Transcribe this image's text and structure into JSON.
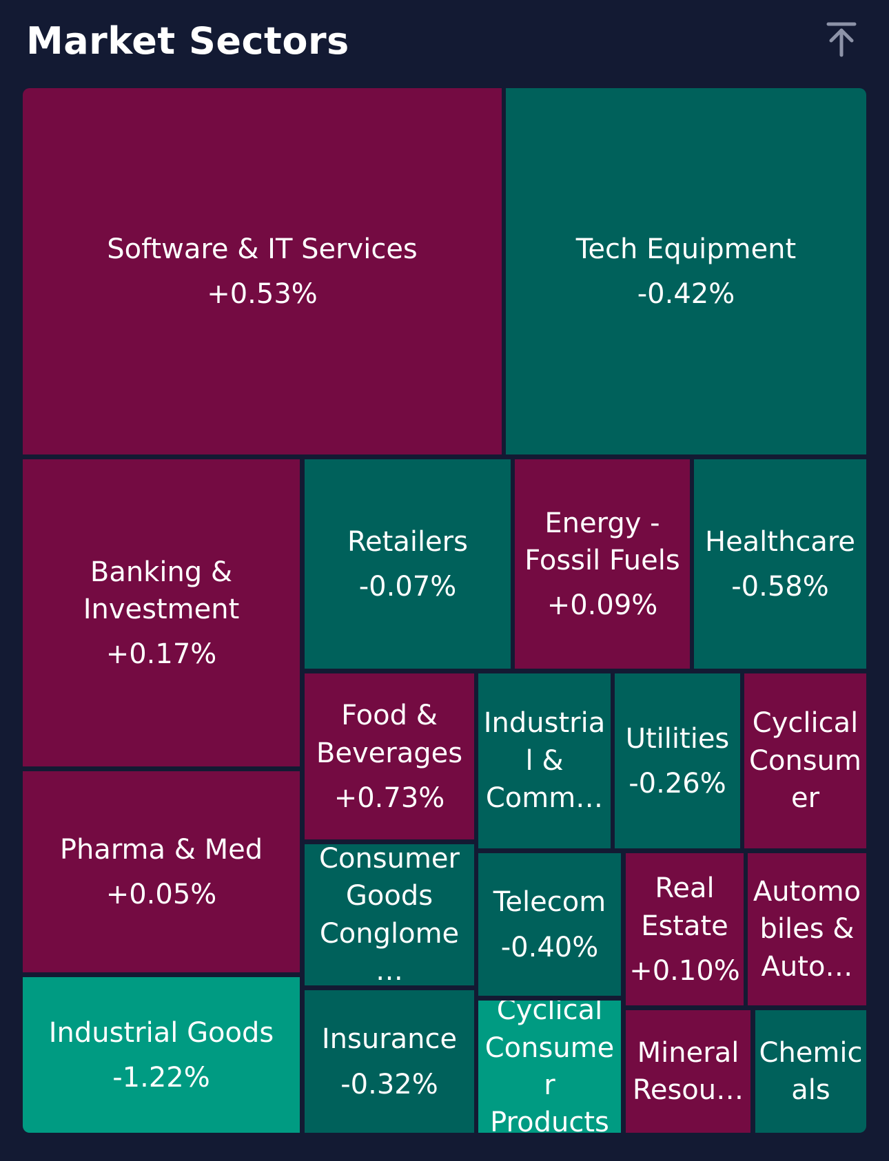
{
  "header": {
    "title": "Market Sectors",
    "collapse_icon": "collapse-up-arrow-icon"
  },
  "colors": {
    "background": "#131a33",
    "positive": "#740b42",
    "negative": "#00615b",
    "strong_negative": "#009b82",
    "text": "#ffffff",
    "icon": "#8d93a8"
  },
  "chart_data": {
    "type": "treemap",
    "title": "Market Sectors",
    "sectors": [
      {
        "name": "Software & IT Services",
        "change": "+0.53%",
        "value": 0.53
      },
      {
        "name": "Tech Equipment",
        "change": "-0.42%",
        "value": -0.42
      },
      {
        "name": "Banking & Investment",
        "change": "+0.17%",
        "value": 0.17
      },
      {
        "name": "Retailers",
        "change": "-0.07%",
        "value": -0.07
      },
      {
        "name": "Energy - Fossil Fuels",
        "change": "+0.09%",
        "value": 0.09
      },
      {
        "name": "Healthcare",
        "change": "-0.58%",
        "value": -0.58
      },
      {
        "name": "Food & Beverages",
        "change": "+0.73%",
        "value": 0.73
      },
      {
        "name": "Industrial & Comm…",
        "change": "",
        "value": null
      },
      {
        "name": "Utilities",
        "change": "-0.26%",
        "value": -0.26
      },
      {
        "name": "Cyclical Consumer",
        "change": "",
        "value": null
      },
      {
        "name": "Pharma & Med",
        "change": "+0.05%",
        "value": 0.05
      },
      {
        "name": "Consumer Goods Conglome…",
        "change": "",
        "value": null
      },
      {
        "name": "Telecom",
        "change": "-0.40%",
        "value": -0.4
      },
      {
        "name": "Real Estate",
        "change": "+0.10%",
        "value": 0.1
      },
      {
        "name": "Automobiles & Auto…",
        "change": "",
        "value": null
      },
      {
        "name": "Industrial Goods",
        "change": "-1.22%",
        "value": -1.22
      },
      {
        "name": "Insurance",
        "change": "-0.32%",
        "value": -0.32
      },
      {
        "name": "Cyclical Consumer Products",
        "change": "",
        "value": null
      },
      {
        "name": "Mineral Resou…",
        "change": "",
        "value": null
      },
      {
        "name": "Chemicals",
        "change": "",
        "value": null
      }
    ]
  }
}
